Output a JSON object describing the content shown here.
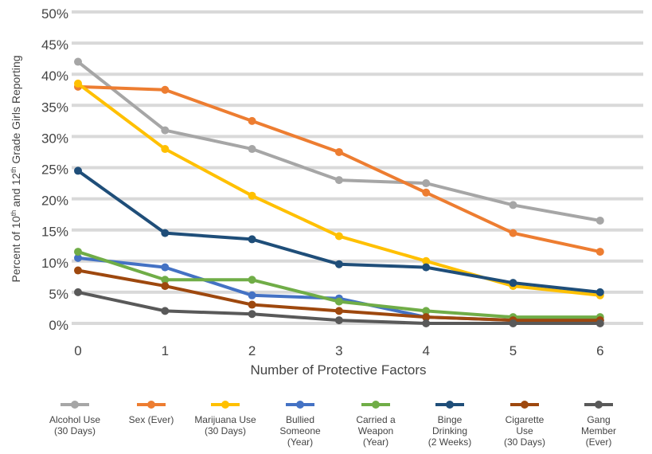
{
  "chart_data": {
    "type": "line",
    "xlabel": "Number of Protective Factors",
    "ylabel": "Percent of 10th and 12th Grade Girls Reporting",
    "ylabel_parts": [
      "Percent of 10",
      "th",
      " and 12",
      "th",
      " Grade Girls Reporting"
    ],
    "x": [
      0,
      1,
      2,
      3,
      4,
      5,
      6
    ],
    "x_ticks": [
      "0",
      "1",
      "2",
      "3",
      "4",
      "5",
      "6"
    ],
    "y_ticks": [
      "0%",
      "5%",
      "10%",
      "15%",
      "20%",
      "25%",
      "30%",
      "35%",
      "40%",
      "45%",
      "50%"
    ],
    "ylim": [
      0,
      50
    ],
    "grid": "horizontal",
    "legend_position": "bottom",
    "series": [
      {
        "name": "Alcohol Use\n(30 Days)",
        "color": "#a6a6a6",
        "values": [
          42,
          31,
          28,
          23,
          22.5,
          19,
          16.5
        ]
      },
      {
        "name": "Sex (Ever)",
        "color": "#ed7d31",
        "values": [
          38,
          37.5,
          32.5,
          27.5,
          21,
          14.5,
          11.5
        ]
      },
      {
        "name": "Marijuana Use\n(30 Days)",
        "color": "#ffc000",
        "values": [
          38.5,
          28,
          20.5,
          14,
          10,
          6,
          4.5
        ]
      },
      {
        "name": "Bullied\nSomeone\n(Year)",
        "color": "#4472c4",
        "values": [
          10.5,
          9,
          4.5,
          4,
          1,
          0.5,
          0.5
        ]
      },
      {
        "name": "Carried a\nWeapon\n(Year)",
        "color": "#70ad47",
        "values": [
          11.5,
          7,
          7,
          3.5,
          2,
          1,
          1
        ]
      },
      {
        "name": "Binge\nDrinking\n(2 Weeks)",
        "color": "#1f4e79",
        "values": [
          24.5,
          14.5,
          13.5,
          9.5,
          9,
          6.5,
          5
        ]
      },
      {
        "name": "Cigarette\nUse\n(30 Days)",
        "color": "#9e480e",
        "values": [
          8.5,
          6,
          3,
          2,
          1,
          0.5,
          0.5
        ]
      },
      {
        "name": "Gang\nMember\n(Ever)",
        "color": "#595959",
        "values": [
          5,
          2,
          1.5,
          0.5,
          0,
          0,
          0
        ]
      }
    ]
  }
}
